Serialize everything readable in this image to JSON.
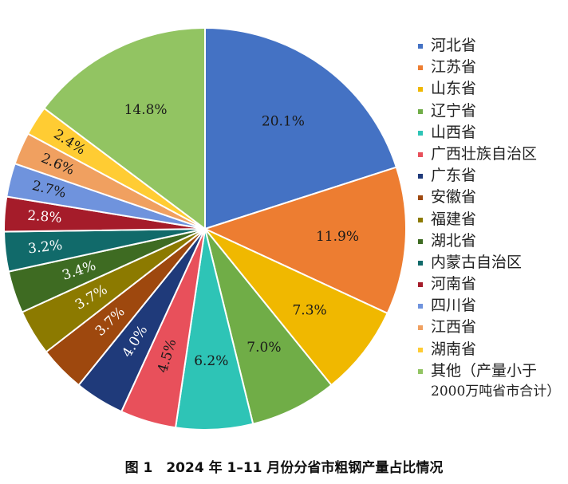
{
  "chart_data": {
    "type": "pie",
    "title": "",
    "caption": "图 1　2024 年 1–11 月份分省市粗钢产量占比情况",
    "legend_position": "right",
    "slices": [
      {
        "name": "河北省",
        "value": 20.1,
        "label": "20.1%",
        "color": "#4472C4",
        "label_color": "#1a1a1a"
      },
      {
        "name": "江苏省",
        "value": 11.9,
        "label": "11.9%",
        "color": "#ED7D31",
        "label_color": "#1a1a1a"
      },
      {
        "name": "山东省",
        "value": 7.3,
        "label": "7.3%",
        "color": "#F0B800",
        "label_color": "#1a1a1a"
      },
      {
        "name": "辽宁省",
        "value": 7.0,
        "label": "7.0%",
        "color": "#70AD47",
        "label_color": "#1a1a1a"
      },
      {
        "name": "山西省",
        "value": 6.2,
        "label": "6.2%",
        "color": "#2EC4B6",
        "label_color": "#1a1a1a"
      },
      {
        "name": "广西壮族自治区",
        "value": 4.5,
        "label": "4.5%",
        "color": "#E8505B",
        "label_color": "#1a1a1a"
      },
      {
        "name": "广东省",
        "value": 4.0,
        "label": "4.0%",
        "color": "#1F3A7A",
        "label_color": "#ffffff"
      },
      {
        "name": "安徽省",
        "value": 3.7,
        "label": "3.7%",
        "color": "#9E480E",
        "label_color": "#ffffff"
      },
      {
        "name": "福建省",
        "value": 3.7,
        "label": "3.7%",
        "color": "#8C7A00",
        "label_color": "#ffffff"
      },
      {
        "name": "湖北省",
        "value": 3.4,
        "label": "3.4%",
        "color": "#3E6B22",
        "label_color": "#ffffff"
      },
      {
        "name": "内蒙古自治区",
        "value": 3.2,
        "label": "3.2%",
        "color": "#116A6A",
        "label_color": "#ffffff"
      },
      {
        "name": "河南省",
        "value": 2.8,
        "label": "2.8%",
        "color": "#A51C2A",
        "label_color": "#ffffff"
      },
      {
        "name": "四川省",
        "value": 2.7,
        "label": "2.7%",
        "color": "#6F93DD",
        "label_color": "#1a1a1a"
      },
      {
        "name": "江西省",
        "value": 2.6,
        "label": "2.6%",
        "color": "#F0A060",
        "label_color": "#1a1a1a"
      },
      {
        "name": "湖南省",
        "value": 2.4,
        "label": "2.4%",
        "color": "#FFCC33",
        "label_color": "#1a1a1a"
      },
      {
        "name": "其他（产量小于",
        "name_line2": "2000万吨省市合计）",
        "value": 14.8,
        "label": "14.8%",
        "color": "#92C462",
        "label_color": "#1a1a1a"
      }
    ]
  }
}
